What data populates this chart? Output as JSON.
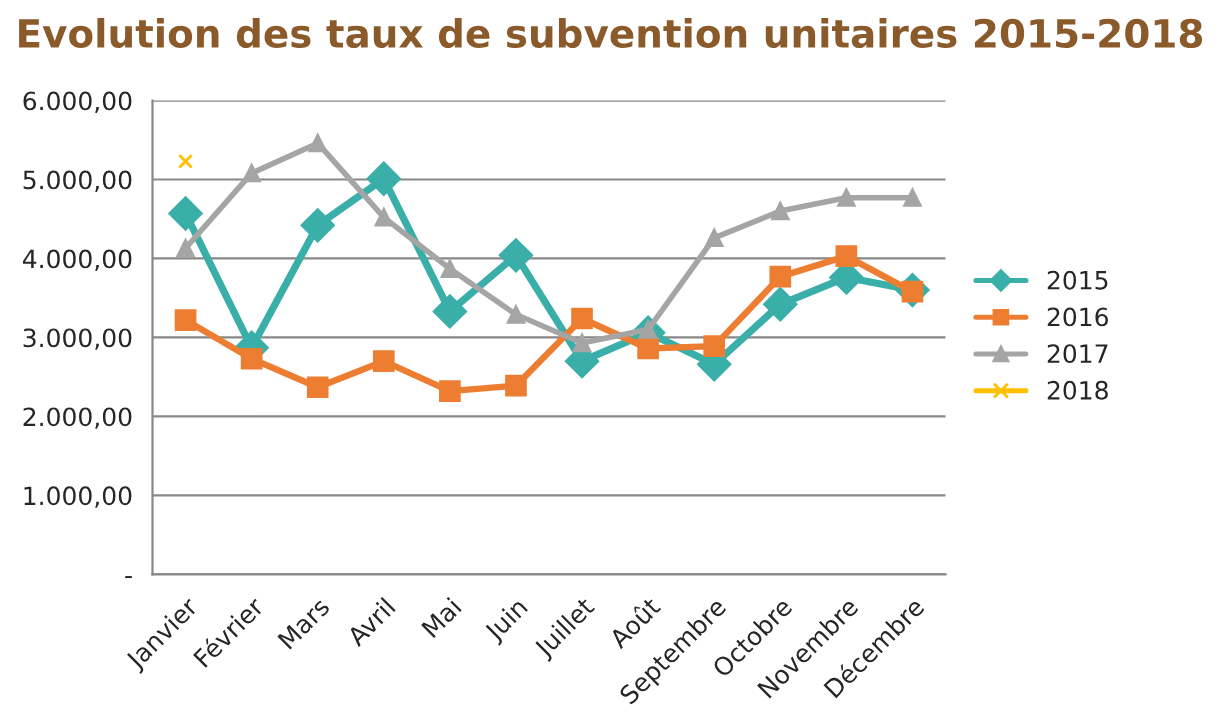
{
  "chart_data": {
    "type": "line",
    "title": "Evolution des taux de subvention unitaires 2015-2018",
    "categories": [
      "Janvier",
      "Février",
      "Mars",
      "Avril",
      "Mai",
      "Juin",
      "Juillet",
      "Août",
      "Septembre",
      "Octobre",
      "Novembre",
      "Décembre"
    ],
    "series": [
      {
        "name": "2015",
        "color": "#3aafa9",
        "marker": "diamond",
        "values": [
          4570,
          2870,
          4420,
          5010,
          3330,
          4040,
          2700,
          3060,
          2660,
          3420,
          3760,
          3600
        ]
      },
      {
        "name": "2016",
        "color": "#ed7d31",
        "marker": "square",
        "values": [
          3220,
          2730,
          2370,
          2700,
          2320,
          2390,
          3240,
          2860,
          2890,
          3770,
          4030,
          3580
        ]
      },
      {
        "name": "2017",
        "color": "#a5a5a5",
        "marker": "triangle",
        "values": [
          4130,
          5080,
          5460,
          4520,
          3870,
          3290,
          2930,
          3100,
          4260,
          4600,
          4770,
          4770
        ]
      },
      {
        "name": "2018",
        "color": "#ffc000",
        "marker": "cross",
        "values": [
          5230,
          null,
          null,
          null,
          null,
          null,
          null,
          null,
          null,
          null,
          null,
          null
        ]
      }
    ],
    "ylim": [
      0,
      6000
    ],
    "yticks": [
      {
        "value": 0,
        "label": "-"
      },
      {
        "value": 1000,
        "label": "1.000,00"
      },
      {
        "value": 2000,
        "label": "2.000,00"
      },
      {
        "value": 3000,
        "label": "3.000,00"
      },
      {
        "value": 4000,
        "label": "4.000,00"
      },
      {
        "value": 5000,
        "label": "5.000,00"
      },
      {
        "value": 6000,
        "label": "6.000,00"
      }
    ],
    "grid": "y",
    "legend": "right"
  }
}
